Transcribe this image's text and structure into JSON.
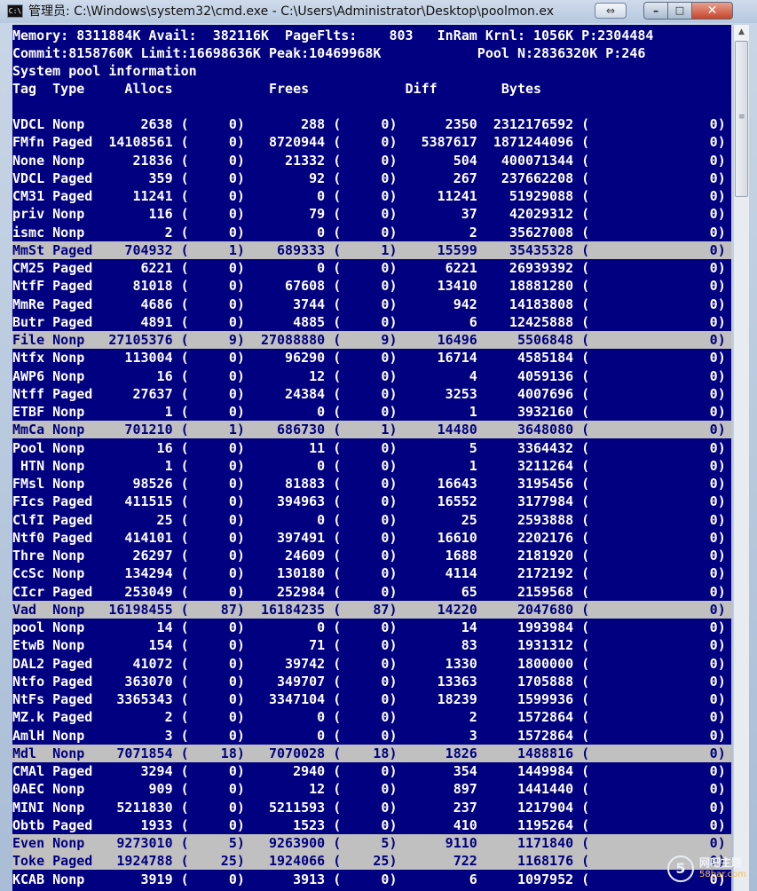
{
  "window": {
    "title": "管理员: C:\\Windows\\system32\\cmd.exe - C:\\Users\\Administrator\\Desktop\\poolmon.ex",
    "icon_text": "C:\\",
    "restore_glyph": "⇔",
    "min_glyph": "–",
    "max_glyph": "□",
    "close_glyph": "✕"
  },
  "header_lines": [
    "Memory: 8311884K Avail:  382116K  PageFlts:    803   InRam Krnl: 1056K P:2304484",
    "Commit:8158760K Limit:16698636K Peak:10469968K            Pool N:2836320K P:246",
    "System pool information",
    "Tag  Type     Allocs            Frees            Diff        Bytes",
    ""
  ],
  "rows": [
    {
      "tag": "VDCL",
      "type": "Nonp",
      "allocs": "2638",
      "allocs_d": "0",
      "frees": "288",
      "frees_d": "0",
      "diff": "2350",
      "bytes": "2312176592",
      "bytes_d": "0",
      "hl": false
    },
    {
      "tag": "FMfn",
      "type": "Paged",
      "allocs": "14108561",
      "allocs_d": "0",
      "frees": "8720944",
      "frees_d": "0",
      "diff": "5387617",
      "bytes": "1871244096",
      "bytes_d": "0",
      "hl": false
    },
    {
      "tag": "None",
      "type": "Nonp",
      "allocs": "21836",
      "allocs_d": "0",
      "frees": "21332",
      "frees_d": "0",
      "diff": "504",
      "bytes": "400071344",
      "bytes_d": "0",
      "hl": false
    },
    {
      "tag": "VDCL",
      "type": "Paged",
      "allocs": "359",
      "allocs_d": "0",
      "frees": "92",
      "frees_d": "0",
      "diff": "267",
      "bytes": "237662208",
      "bytes_d": "0",
      "hl": false
    },
    {
      "tag": "CM31",
      "type": "Paged",
      "allocs": "11241",
      "allocs_d": "0",
      "frees": "0",
      "frees_d": "0",
      "diff": "11241",
      "bytes": "51929088",
      "bytes_d": "0",
      "hl": false
    },
    {
      "tag": "priv",
      "type": "Nonp",
      "allocs": "116",
      "allocs_d": "0",
      "frees": "79",
      "frees_d": "0",
      "diff": "37",
      "bytes": "42029312",
      "bytes_d": "0",
      "hl": false
    },
    {
      "tag": "ismc",
      "type": "Nonp",
      "allocs": "2",
      "allocs_d": "0",
      "frees": "0",
      "frees_d": "0",
      "diff": "2",
      "bytes": "35627008",
      "bytes_d": "0",
      "hl": false
    },
    {
      "tag": "MmSt",
      "type": "Paged",
      "allocs": "704932",
      "allocs_d": "1",
      "frees": "689333",
      "frees_d": "1",
      "diff": "15599",
      "bytes": "35435328",
      "bytes_d": "0",
      "hl": true
    },
    {
      "tag": "CM25",
      "type": "Paged",
      "allocs": "6221",
      "allocs_d": "0",
      "frees": "0",
      "frees_d": "0",
      "diff": "6221",
      "bytes": "26939392",
      "bytes_d": "0",
      "hl": false
    },
    {
      "tag": "NtfF",
      "type": "Paged",
      "allocs": "81018",
      "allocs_d": "0",
      "frees": "67608",
      "frees_d": "0",
      "diff": "13410",
      "bytes": "18881280",
      "bytes_d": "0",
      "hl": false
    },
    {
      "tag": "MmRe",
      "type": "Paged",
      "allocs": "4686",
      "allocs_d": "0",
      "frees": "3744",
      "frees_d": "0",
      "diff": "942",
      "bytes": "14183808",
      "bytes_d": "0",
      "hl": false
    },
    {
      "tag": "Butr",
      "type": "Paged",
      "allocs": "4891",
      "allocs_d": "0",
      "frees": "4885",
      "frees_d": "0",
      "diff": "6",
      "bytes": "12425888",
      "bytes_d": "0",
      "hl": false
    },
    {
      "tag": "File",
      "type": "Nonp",
      "allocs": "27105376",
      "allocs_d": "9",
      "frees": "27088880",
      "frees_d": "9",
      "diff": "16496",
      "bytes": "5506848",
      "bytes_d": "0",
      "hl": true
    },
    {
      "tag": "Ntfx",
      "type": "Nonp",
      "allocs": "113004",
      "allocs_d": "0",
      "frees": "96290",
      "frees_d": "0",
      "diff": "16714",
      "bytes": "4585184",
      "bytes_d": "0",
      "hl": false
    },
    {
      "tag": "AWP6",
      "type": "Nonp",
      "allocs": "16",
      "allocs_d": "0",
      "frees": "12",
      "frees_d": "0",
      "diff": "4",
      "bytes": "4059136",
      "bytes_d": "0",
      "hl": false
    },
    {
      "tag": "Ntff",
      "type": "Paged",
      "allocs": "27637",
      "allocs_d": "0",
      "frees": "24384",
      "frees_d": "0",
      "diff": "3253",
      "bytes": "4007696",
      "bytes_d": "0",
      "hl": false
    },
    {
      "tag": "ETBF",
      "type": "Nonp",
      "allocs": "1",
      "allocs_d": "0",
      "frees": "0",
      "frees_d": "0",
      "diff": "1",
      "bytes": "3932160",
      "bytes_d": "0",
      "hl": false
    },
    {
      "tag": "MmCa",
      "type": "Nonp",
      "allocs": "701210",
      "allocs_d": "1",
      "frees": "686730",
      "frees_d": "1",
      "diff": "14480",
      "bytes": "3648080",
      "bytes_d": "0",
      "hl": true
    },
    {
      "tag": "Pool",
      "type": "Nonp",
      "allocs": "16",
      "allocs_d": "0",
      "frees": "11",
      "frees_d": "0",
      "diff": "5",
      "bytes": "3364432",
      "bytes_d": "0",
      "hl": false
    },
    {
      "tag": " HTN",
      "type": "Nonp",
      "allocs": "1",
      "allocs_d": "0",
      "frees": "0",
      "frees_d": "0",
      "diff": "1",
      "bytes": "3211264",
      "bytes_d": "0",
      "hl": false
    },
    {
      "tag": "FMsl",
      "type": "Nonp",
      "allocs": "98526",
      "allocs_d": "0",
      "frees": "81883",
      "frees_d": "0",
      "diff": "16643",
      "bytes": "3195456",
      "bytes_d": "0",
      "hl": false
    },
    {
      "tag": "FIcs",
      "type": "Paged",
      "allocs": "411515",
      "allocs_d": "0",
      "frees": "394963",
      "frees_d": "0",
      "diff": "16552",
      "bytes": "3177984",
      "bytes_d": "0",
      "hl": false
    },
    {
      "tag": "ClfI",
      "type": "Paged",
      "allocs": "25",
      "allocs_d": "0",
      "frees": "0",
      "frees_d": "0",
      "diff": "25",
      "bytes": "2593888",
      "bytes_d": "0",
      "hl": false
    },
    {
      "tag": "Ntf0",
      "type": "Paged",
      "allocs": "414101",
      "allocs_d": "0",
      "frees": "397491",
      "frees_d": "0",
      "diff": "16610",
      "bytes": "2202176",
      "bytes_d": "0",
      "hl": false
    },
    {
      "tag": "Thre",
      "type": "Nonp",
      "allocs": "26297",
      "allocs_d": "0",
      "frees": "24609",
      "frees_d": "0",
      "diff": "1688",
      "bytes": "2181920",
      "bytes_d": "0",
      "hl": false
    },
    {
      "tag": "CcSc",
      "type": "Nonp",
      "allocs": "134294",
      "allocs_d": "0",
      "frees": "130180",
      "frees_d": "0",
      "diff": "4114",
      "bytes": "2172192",
      "bytes_d": "0",
      "hl": false
    },
    {
      "tag": "CIcr",
      "type": "Paged",
      "allocs": "253049",
      "allocs_d": "0",
      "frees": "252984",
      "frees_d": "0",
      "diff": "65",
      "bytes": "2159568",
      "bytes_d": "0",
      "hl": false
    },
    {
      "tag": "Vad ",
      "type": "Nonp",
      "allocs": "16198455",
      "allocs_d": "87",
      "frees": "16184235",
      "frees_d": "87",
      "diff": "14220",
      "bytes": "2047680",
      "bytes_d": "0",
      "hl": true
    },
    {
      "tag": "pool",
      "type": "Nonp",
      "allocs": "14",
      "allocs_d": "0",
      "frees": "0",
      "frees_d": "0",
      "diff": "14",
      "bytes": "1993984",
      "bytes_d": "0",
      "hl": false
    },
    {
      "tag": "EtwB",
      "type": "Nonp",
      "allocs": "154",
      "allocs_d": "0",
      "frees": "71",
      "frees_d": "0",
      "diff": "83",
      "bytes": "1931312",
      "bytes_d": "0",
      "hl": false
    },
    {
      "tag": "DAL2",
      "type": "Paged",
      "allocs": "41072",
      "allocs_d": "0",
      "frees": "39742",
      "frees_d": "0",
      "diff": "1330",
      "bytes": "1800000",
      "bytes_d": "0",
      "hl": false
    },
    {
      "tag": "Ntfo",
      "type": "Paged",
      "allocs": "363070",
      "allocs_d": "0",
      "frees": "349707",
      "frees_d": "0",
      "diff": "13363",
      "bytes": "1705888",
      "bytes_d": "0",
      "hl": false
    },
    {
      "tag": "NtFs",
      "type": "Paged",
      "allocs": "3365343",
      "allocs_d": "0",
      "frees": "3347104",
      "frees_d": "0",
      "diff": "18239",
      "bytes": "1599936",
      "bytes_d": "0",
      "hl": false
    },
    {
      "tag": "MZ.k",
      "type": "Paged",
      "allocs": "2",
      "allocs_d": "0",
      "frees": "0",
      "frees_d": "0",
      "diff": "2",
      "bytes": "1572864",
      "bytes_d": "0",
      "hl": false
    },
    {
      "tag": "AmlH",
      "type": "Nonp",
      "allocs": "3",
      "allocs_d": "0",
      "frees": "0",
      "frees_d": "0",
      "diff": "3",
      "bytes": "1572864",
      "bytes_d": "0",
      "hl": false
    },
    {
      "tag": "Mdl ",
      "type": "Nonp",
      "allocs": "7071854",
      "allocs_d": "18",
      "frees": "7070028",
      "frees_d": "18",
      "diff": "1826",
      "bytes": "1488816",
      "bytes_d": "0",
      "hl": true
    },
    {
      "tag": "CMAl",
      "type": "Paged",
      "allocs": "3294",
      "allocs_d": "0",
      "frees": "2940",
      "frees_d": "0",
      "diff": "354",
      "bytes": "1449984",
      "bytes_d": "0",
      "hl": false
    },
    {
      "tag": "0AEC",
      "type": "Nonp",
      "allocs": "909",
      "allocs_d": "0",
      "frees": "12",
      "frees_d": "0",
      "diff": "897",
      "bytes": "1441440",
      "bytes_d": "0",
      "hl": false
    },
    {
      "tag": "MINI",
      "type": "Nonp",
      "allocs": "5211830",
      "allocs_d": "0",
      "frees": "5211593",
      "frees_d": "0",
      "diff": "237",
      "bytes": "1217904",
      "bytes_d": "0",
      "hl": false
    },
    {
      "tag": "Obtb",
      "type": "Paged",
      "allocs": "1933",
      "allocs_d": "0",
      "frees": "1523",
      "frees_d": "0",
      "diff": "410",
      "bytes": "1195264",
      "bytes_d": "0",
      "hl": false
    },
    {
      "tag": "Even",
      "type": "Nonp",
      "allocs": "9273010",
      "allocs_d": "5",
      "frees": "9263900",
      "frees_d": "5",
      "diff": "9110",
      "bytes": "1171840",
      "bytes_d": "0",
      "hl": true
    },
    {
      "tag": "Toke",
      "type": "Paged",
      "allocs": "1924788",
      "allocs_d": "25",
      "frees": "1924066",
      "frees_d": "25",
      "diff": "722",
      "bytes": "1168176",
      "bytes_d": "0",
      "hl": true
    },
    {
      "tag": "KCAB",
      "type": "Nonp",
      "allocs": "3919",
      "allocs_d": "0",
      "frees": "3913",
      "frees_d": "0",
      "diff": "6",
      "bytes": "1097952",
      "bytes_d": "0",
      "hl": false
    }
  ],
  "scrollbar": {
    "up_glyph": "▲",
    "grip_glyph": "≡"
  },
  "watermark": {
    "circle_text": "5",
    "top_text": "网吧主题",
    "bottom_text": "58bar.com"
  }
}
